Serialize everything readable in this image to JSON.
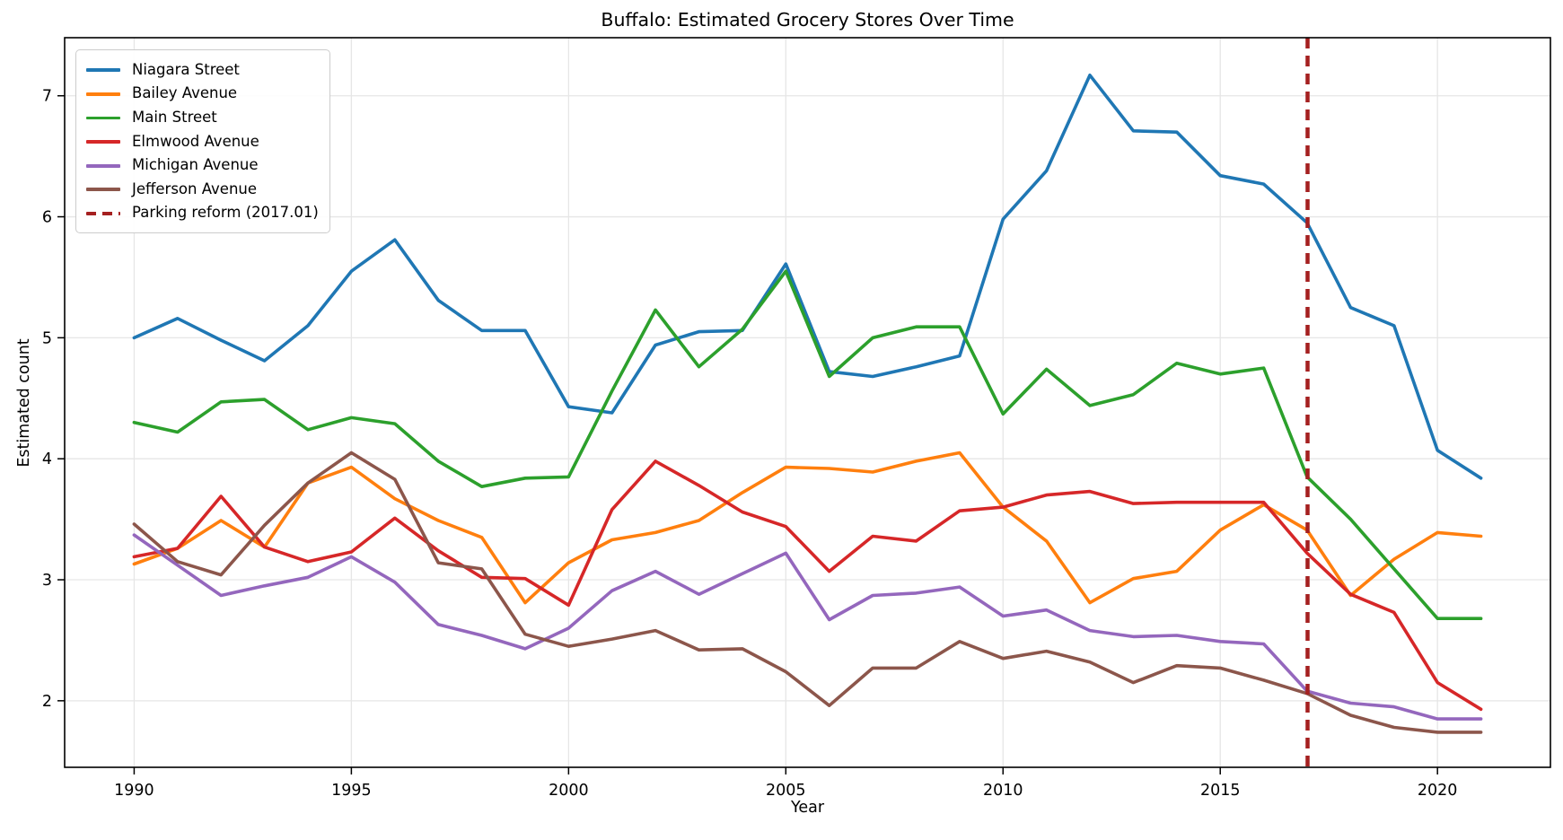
{
  "chart_data": {
    "type": "line",
    "title": "Buffalo: Estimated Grocery Stores Over Time",
    "xlabel": "Year",
    "ylabel": "Estimated count",
    "x": [
      1990,
      1991,
      1992,
      1993,
      1994,
      1995,
      1996,
      1997,
      1998,
      1999,
      2000,
      2001,
      2002,
      2003,
      2004,
      2005,
      2006,
      2007,
      2008,
      2009,
      2010,
      2011,
      2012,
      2013,
      2014,
      2015,
      2016,
      2017,
      2018,
      2019,
      2020,
      2021
    ],
    "series": [
      {
        "name": "Niagara Street",
        "color": "#1f77b4",
        "values": [
          5.0,
          5.16,
          4.98,
          4.81,
          5.1,
          5.55,
          5.81,
          5.31,
          5.06,
          5.06,
          4.43,
          4.38,
          4.94,
          5.05,
          5.06,
          5.61,
          4.72,
          4.68,
          4.76,
          4.85,
          5.98,
          6.38,
          7.17,
          6.71,
          6.7,
          6.34,
          6.27,
          5.95,
          5.25,
          5.1,
          4.07,
          3.84
        ]
      },
      {
        "name": "Bailey Avenue",
        "color": "#ff7f0e",
        "values": [
          3.13,
          3.26,
          3.49,
          3.27,
          3.8,
          3.93,
          3.67,
          3.49,
          3.35,
          2.81,
          3.14,
          3.33,
          3.39,
          3.49,
          3.72,
          3.93,
          3.92,
          3.89,
          3.98,
          4.05,
          3.6,
          3.32,
          2.81,
          3.01,
          3.07,
          3.41,
          3.62,
          3.41,
          2.87,
          3.17,
          3.39,
          3.36
        ]
      },
      {
        "name": "Main Street",
        "color": "#2ca02c",
        "values": [
          4.3,
          4.22,
          4.47,
          4.49,
          4.24,
          4.34,
          4.29,
          3.98,
          3.77,
          3.84,
          3.85,
          4.56,
          5.23,
          4.76,
          5.07,
          5.55,
          4.68,
          5.0,
          5.09,
          5.09,
          4.37,
          4.74,
          4.44,
          4.53,
          4.79,
          4.7,
          4.75,
          3.85,
          3.5,
          3.09,
          2.68,
          2.68
        ]
      },
      {
        "name": "Elmwood Avenue",
        "color": "#d62728",
        "values": [
          3.19,
          3.26,
          3.69,
          3.27,
          3.15,
          3.23,
          3.51,
          3.24,
          3.02,
          3.01,
          2.79,
          3.58,
          3.98,
          3.78,
          3.56,
          3.44,
          3.07,
          3.36,
          3.32,
          3.57,
          3.6,
          3.7,
          3.73,
          3.63,
          3.64,
          3.64,
          3.64,
          3.22,
          2.88,
          2.73,
          2.15,
          1.93
        ]
      },
      {
        "name": "Michigan Avenue",
        "color": "#9467bd",
        "values": [
          3.37,
          3.12,
          2.87,
          2.95,
          3.02,
          3.19,
          2.98,
          2.63,
          2.54,
          2.43,
          2.6,
          2.91,
          3.07,
          2.88,
          3.05,
          3.22,
          2.67,
          2.87,
          2.89,
          2.94,
          2.7,
          2.75,
          2.58,
          2.53,
          2.54,
          2.49,
          2.47,
          2.08,
          1.98,
          1.95,
          1.85,
          1.85
        ]
      },
      {
        "name": "Jefferson Avenue",
        "color": "#8c564b",
        "values": [
          3.46,
          3.15,
          3.04,
          3.45,
          3.8,
          4.05,
          3.83,
          3.14,
          3.09,
          2.55,
          2.45,
          2.51,
          2.58,
          2.42,
          2.43,
          2.24,
          1.96,
          2.27,
          2.27,
          2.49,
          2.35,
          2.41,
          2.32,
          2.15,
          2.29,
          2.27,
          2.17,
          2.06,
          1.88,
          1.78,
          1.74,
          1.74
        ]
      }
    ],
    "annotation": {
      "label": "Parking reform (2017.01)",
      "x": 2017.01,
      "color": "#a52020",
      "style": "dashed"
    },
    "xticks": [
      1990,
      1995,
      2000,
      2005,
      2010,
      2015,
      2020
    ],
    "yticks": [
      2,
      3,
      4,
      5,
      6,
      7
    ],
    "xlim": [
      1988.4,
      2022.6
    ],
    "ylim": [
      1.45,
      7.48
    ],
    "grid": true,
    "legend_position": "upper left"
  }
}
